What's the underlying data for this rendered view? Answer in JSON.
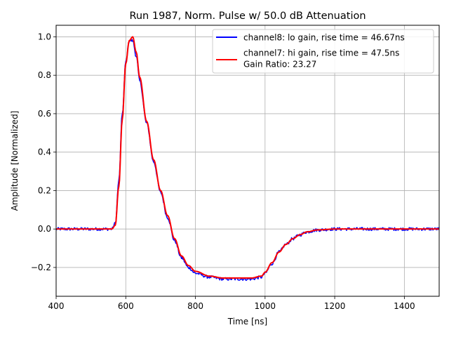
{
  "chart_data": {
    "type": "line",
    "title": "Run 1987, Norm. Pulse w/ 50.0 dB Attenuation",
    "xlabel": "Time [ns]",
    "ylabel": "Amplitude [Normalized]",
    "xlim": [
      400,
      1500
    ],
    "ylim": [
      -0.35,
      1.06
    ],
    "grid": true,
    "legend_position": "top-right",
    "xticks": [
      400,
      600,
      800,
      1000,
      1200,
      1400
    ],
    "xtick_labels": [
      "400",
      "600",
      "800",
      "1000",
      "1200",
      "1400"
    ],
    "yticks": [
      -0.2,
      0.0,
      0.2,
      0.4,
      0.6,
      0.8,
      1.0
    ],
    "ytick_labels": [
      "−0.2",
      "0.0",
      "0.2",
      "0.4",
      "0.6",
      "0.8",
      "1.0"
    ],
    "series": [
      {
        "name": "channel8: lo gain, rise time = 46.67ns",
        "color": "#0000ff",
        "noise": 0.008,
        "x": [
          400,
          450,
          500,
          540,
          560,
          570,
          580,
          590,
          600,
          610,
          620,
          630,
          640,
          660,
          680,
          700,
          720,
          740,
          760,
          780,
          800,
          840,
          880,
          920,
          960,
          990,
          1000,
          1020,
          1040,
          1060,
          1080,
          1100,
          1120,
          1150,
          1200,
          1300,
          1400,
          1500
        ],
        "y": [
          0.0,
          0.0,
          0.0,
          0.0,
          0.0,
          0.03,
          0.25,
          0.6,
          0.87,
          0.98,
          0.98,
          0.9,
          0.77,
          0.55,
          0.35,
          0.19,
          0.06,
          -0.06,
          -0.15,
          -0.2,
          -0.23,
          -0.25,
          -0.26,
          -0.26,
          -0.26,
          -0.25,
          -0.23,
          -0.18,
          -0.12,
          -0.08,
          -0.05,
          -0.03,
          -0.015,
          -0.005,
          0.0,
          0.0,
          0.0,
          0.0
        ]
      },
      {
        "name": "channel7: hi gain, rise time = 47.5ns",
        "color": "#ff0000",
        "noise": 0.0,
        "x": [
          400,
          450,
          500,
          540,
          560,
          570,
          580,
          590,
          600,
          610,
          620,
          630,
          640,
          660,
          680,
          700,
          720,
          740,
          760,
          780,
          800,
          840,
          880,
          920,
          960,
          990,
          1000,
          1020,
          1040,
          1060,
          1080,
          1100,
          1120,
          1150,
          1200,
          1300,
          1400,
          1500
        ],
        "y": [
          0.0,
          0.0,
          0.0,
          0.0,
          0.0,
          0.02,
          0.22,
          0.57,
          0.86,
          0.98,
          1.0,
          0.92,
          0.79,
          0.56,
          0.36,
          0.2,
          0.07,
          -0.05,
          -0.14,
          -0.19,
          -0.22,
          -0.245,
          -0.255,
          -0.255,
          -0.255,
          -0.245,
          -0.225,
          -0.175,
          -0.12,
          -0.08,
          -0.05,
          -0.03,
          -0.015,
          -0.005,
          0.0,
          0.0,
          0.0,
          0.0
        ]
      }
    ],
    "legend_extra": "Gain Ratio: 23.27"
  }
}
